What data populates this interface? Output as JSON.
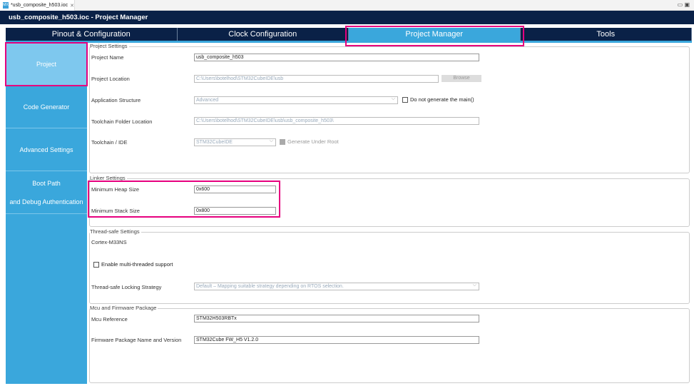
{
  "file_tab": {
    "icon": "MX",
    "label": "*usb_composite_h503.ioc"
  },
  "breadcrumb": "usb_composite_h503.ioc - Project Manager",
  "tabs": [
    "Pinout & Configuration",
    "Clock Configuration",
    "Project Manager",
    "Tools"
  ],
  "active_tab": "Project Manager",
  "sidebar": [
    "Project",
    "Code Generator",
    "Advanced Settings",
    "Boot Path",
    "and Debug Authentication"
  ],
  "project_settings": {
    "title": "Project Settings",
    "project_name_label": "Project Name",
    "project_name": "usb_composite_h503",
    "project_location_label": "Project Location",
    "project_location": "C:\\Users\\botelhod\\STM32CubeIDE\\usb",
    "browse": "Browse",
    "app_structure_label": "Application Structure",
    "app_structure": "Advanced",
    "no_main": "Do not generate the main()",
    "toolchain_folder_label": "Toolchain Folder Location",
    "toolchain_folder": "C:\\Users\\botelhod\\STM32CubeIDE\\usb\\usb_composite_h503\\",
    "toolchain_label": "Toolchain / IDE",
    "toolchain": "STM32CubeIDE",
    "gen_under_root": "Generate Under Root"
  },
  "linker": {
    "title": "Linker Settings",
    "heap_label": "Minimum Heap Size",
    "heap": "0x600",
    "stack_label": "Minimum Stack Size",
    "stack": "0x800"
  },
  "thread": {
    "title": "Thread-safe Settings",
    "core": "Cortex-M33NS",
    "multi": "Enable multi-threaded support",
    "strategy_label": "Thread-safe Locking Strategy",
    "strategy": "Default – Mapping suitable strategy depending on RTOS selection."
  },
  "mcu": {
    "title": "Mcu and Firmware Package",
    "ref_label": "Mcu Reference",
    "ref": "STM32H503RBTx",
    "fw_label": "Firmware Package Name and Version",
    "fw": "STM32Cube FW_H5 V1.2.0"
  },
  "highlight_color": "#e6007e"
}
